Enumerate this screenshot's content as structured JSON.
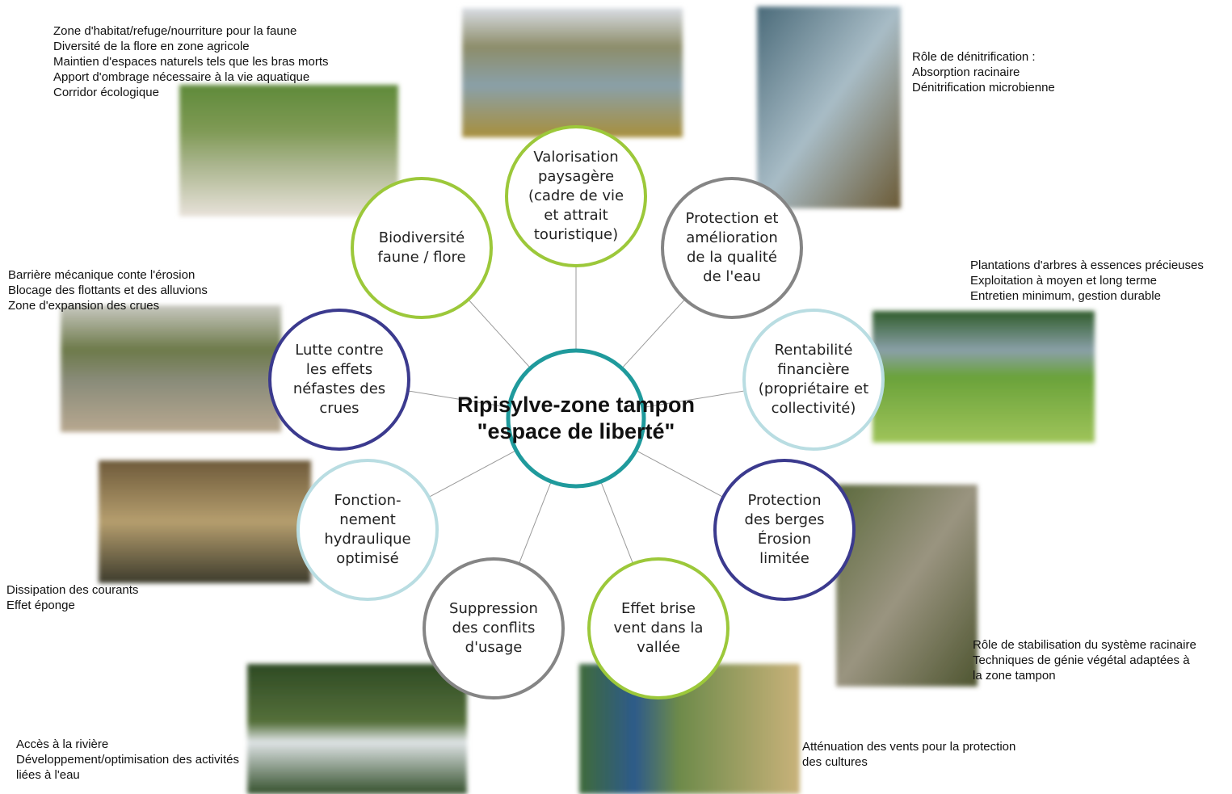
{
  "center": {
    "lines": [
      "Ripisylve-zone tampon",
      "\"espace de liberté\""
    ],
    "color": "#1f9a9c"
  },
  "nodes": [
    {
      "lines": [
        "Biodiversité",
        "faune / flore"
      ],
      "color": "#9cc83a"
    },
    {
      "lines": [
        "Valorisation",
        "paysagère",
        "(cadre de vie",
        "et attrait",
        "touristique)"
      ],
      "color": "#9cc83a"
    },
    {
      "lines": [
        "Protection et",
        "amélioration",
        "de la qualité",
        "de l'eau"
      ],
      "color": "#858585"
    },
    {
      "lines": [
        "Rentabilité",
        "financière",
        "(propriétaire et",
        "collectivité)"
      ],
      "color": "#b9dde2"
    },
    {
      "lines": [
        "Protection",
        "des berges",
        "Érosion",
        "limitée"
      ],
      "color": "#3b3a8e"
    },
    {
      "lines": [
        "Effet brise",
        "vent dans la",
        "vallée"
      ],
      "color": "#9cc83a"
    },
    {
      "lines": [
        "Suppression",
        "des conflits",
        "d'usage"
      ],
      "color": "#858585"
    },
    {
      "lines": [
        "Fonction-",
        "nement",
        "hydraulique",
        "optimisé"
      ],
      "color": "#b9dde2"
    },
    {
      "lines": [
        "Lutte contre",
        "les effets",
        "néfastes des",
        "crues"
      ],
      "color": "#3b3a8e"
    }
  ],
  "notes": [
    {
      "lines": [
        "Zone d'habitat/refuge/nourriture pour la faune",
        "Diversité de la flore en zone agricole",
        "Maintien d'espaces naturels tels que les bras morts",
        "Apport d'ombrage nécessaire à la vie aquatique",
        "Corridor écologique"
      ]
    },
    {
      "lines": [
        "Rôle de dénitrification :",
        "Absorption racinaire",
        "Dénitrification microbienne"
      ]
    },
    {
      "lines": [
        "Plantations d'arbres à essences précieuses",
        "Exploitation à moyen et long terme",
        "Entretien minimum, gestion durable"
      ]
    },
    {
      "lines": [
        "Rôle de stabilisation du système racinaire",
        "Techniques de génie végétal adaptées à",
        "la zone tampon"
      ]
    },
    {
      "lines": [
        "Atténuation des vents pour la protection",
        "des cultures"
      ]
    },
    {
      "lines": [
        "Accès à la rivière",
        "Développement/optimisation des activités",
        "liées à l'eau"
      ]
    },
    {
      "lines": [
        "Dissipation des courants",
        "Effet éponge"
      ]
    },
    {
      "lines": [
        "Barrière mécanique conte l'érosion",
        "Blocage des flottants et des alluvions",
        "Zone d'expansion des crues"
      ]
    }
  ]
}
